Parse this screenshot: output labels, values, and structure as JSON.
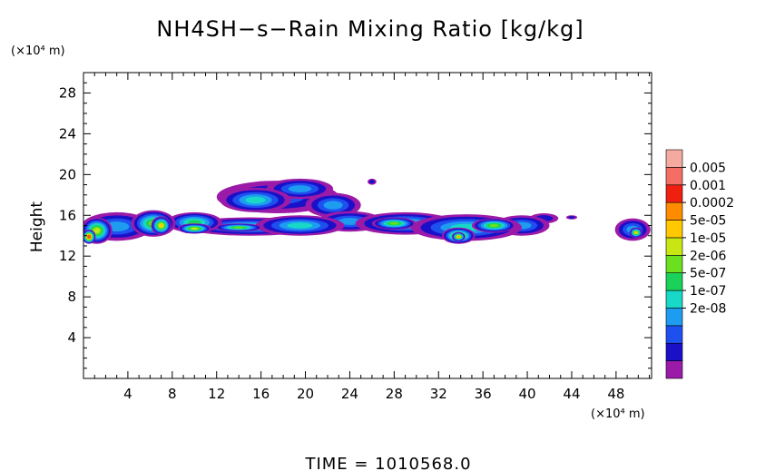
{
  "chart_data": {
    "type": "heatmap",
    "title": "NH4SH−s−Rain Mixing Ratio [kg/kg]",
    "ylabel": "Height",
    "xlabel": "",
    "y_unit_label": "(×10⁴ m)",
    "x_unit_label": "(×10⁴ m)",
    "x_ticks": [
      "4",
      "8",
      "12",
      "16",
      "20",
      "24",
      "28",
      "32",
      "36",
      "40",
      "44",
      "48"
    ],
    "y_ticks": [
      "4",
      "8",
      "12",
      "16",
      "20",
      "24",
      "28"
    ],
    "xlim": [
      0,
      51.2
    ],
    "ylim": [
      0,
      30
    ],
    "footer": "TIME = 1010568.0",
    "colorbar": {
      "labels": [
        "0.005",
        "0.001",
        "0.0002",
        "5e-05",
        "1e-05",
        "2e-06",
        "5e-07",
        "1e-07",
        "2e-08"
      ],
      "colors": [
        "#9c1aa8",
        "#1a10c8",
        "#1e50f0",
        "#1e9cf0",
        "#18d8c8",
        "#1ad25a",
        "#6ae01e",
        "#c8e614",
        "#ffc800",
        "#ff8c00",
        "#f02010",
        "#f56e64",
        "#f5aaa0"
      ]
    },
    "blobs": [
      {
        "x": 3.0,
        "y": 14.9,
        "rx": 3.2,
        "ry": 1.4,
        "lvl": 3
      },
      {
        "x": 1.2,
        "y": 14.5,
        "rx": 1.4,
        "ry": 1.3,
        "lvl": 7
      },
      {
        "x": 0.5,
        "y": 13.9,
        "rx": 0.6,
        "ry": 0.7,
        "lvl": 11
      },
      {
        "x": 6.3,
        "y": 15.2,
        "rx": 2.0,
        "ry": 1.3,
        "lvl": 6
      },
      {
        "x": 7.0,
        "y": 15.0,
        "rx": 0.9,
        "ry": 0.9,
        "lvl": 8
      },
      {
        "x": 10.0,
        "y": 15.3,
        "rx": 2.5,
        "ry": 1.0,
        "lvl": 5
      },
      {
        "x": 10.0,
        "y": 14.7,
        "rx": 1.5,
        "ry": 0.5,
        "lvl": 7
      },
      {
        "x": 15.0,
        "y": 14.9,
        "rx": 6.0,
        "ry": 0.9,
        "lvl": 4
      },
      {
        "x": 14.0,
        "y": 14.8,
        "rx": 2.2,
        "ry": 0.4,
        "lvl": 6
      },
      {
        "x": 19.5,
        "y": 15.0,
        "rx": 4.0,
        "ry": 1.0,
        "lvl": 4
      },
      {
        "x": 17.5,
        "y": 17.8,
        "rx": 5.5,
        "ry": 1.6,
        "lvl": 2
      },
      {
        "x": 15.5,
        "y": 17.5,
        "rx": 3.2,
        "ry": 1.2,
        "lvl": 4
      },
      {
        "x": 19.5,
        "y": 18.6,
        "rx": 3.0,
        "ry": 1.0,
        "lvl": 3
      },
      {
        "x": 22.5,
        "y": 17.0,
        "rx": 2.5,
        "ry": 1.2,
        "lvl": 3
      },
      {
        "x": 24.0,
        "y": 15.4,
        "rx": 3.0,
        "ry": 1.0,
        "lvl": 3
      },
      {
        "x": 29.0,
        "y": 15.2,
        "rx": 4.5,
        "ry": 1.1,
        "lvl": 4
      },
      {
        "x": 28.0,
        "y": 15.2,
        "rx": 2.0,
        "ry": 0.6,
        "lvl": 6
      },
      {
        "x": 34.5,
        "y": 14.8,
        "rx": 5.0,
        "ry": 1.3,
        "lvl": 4
      },
      {
        "x": 33.8,
        "y": 14.0,
        "rx": 1.5,
        "ry": 0.8,
        "lvl": 7
      },
      {
        "x": 33.8,
        "y": 13.9,
        "rx": 0.6,
        "ry": 0.45,
        "lvl": 9
      },
      {
        "x": 37.0,
        "y": 15.0,
        "rx": 2.0,
        "ry": 0.7,
        "lvl": 6
      },
      {
        "x": 39.5,
        "y": 15.0,
        "rx": 2.5,
        "ry": 1.0,
        "lvl": 3
      },
      {
        "x": 41.5,
        "y": 15.7,
        "rx": 1.3,
        "ry": 0.5,
        "lvl": 1
      },
      {
        "x": 44.0,
        "y": 15.8,
        "rx": 0.5,
        "ry": 0.2,
        "lvl": 1
      },
      {
        "x": 49.5,
        "y": 14.6,
        "rx": 1.6,
        "ry": 1.1,
        "lvl": 3
      },
      {
        "x": 49.8,
        "y": 14.3,
        "rx": 0.6,
        "ry": 0.5,
        "lvl": 8
      },
      {
        "x": 26.0,
        "y": 19.3,
        "rx": 0.4,
        "ry": 0.3,
        "lvl": 1
      }
    ]
  }
}
